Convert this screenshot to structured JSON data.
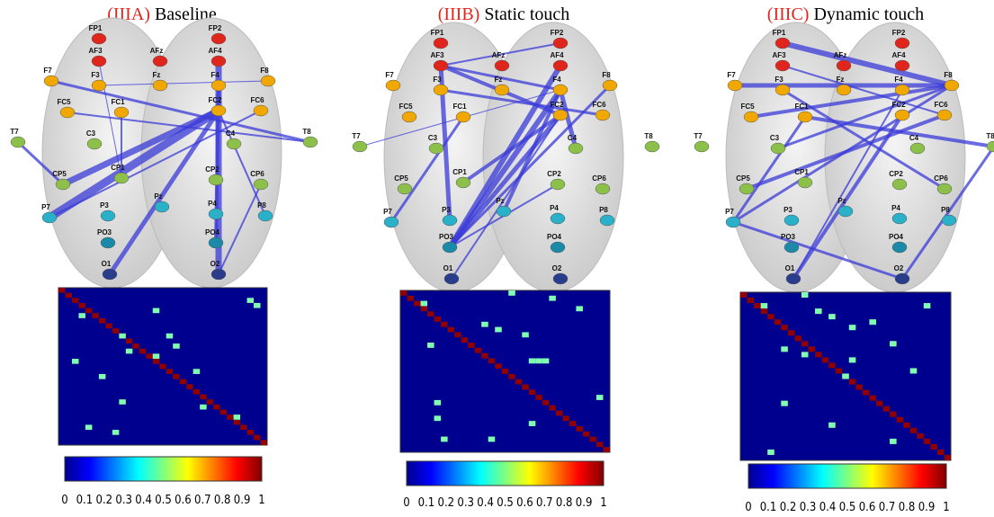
{
  "panels": [
    {
      "label": "(IIIA)",
      "title": "Baseline"
    },
    {
      "label": "(IIIB)",
      "title": "Static touch"
    },
    {
      "label": "(IIIC)",
      "title": "Dynamic touch"
    }
  ],
  "electrodes": [
    "FP1",
    "FP2",
    "AF3",
    "AFz",
    "AF4",
    "F7",
    "F3",
    "Fz",
    "F4",
    "F8",
    "FC5",
    "FC1",
    "FC2",
    "FC6",
    "T7",
    "C3",
    "C4",
    "T8",
    "CP5",
    "CP1",
    "CP2",
    "CP6",
    "P7",
    "P3",
    "Pz",
    "P4",
    "P8",
    "PO3",
    "PO4",
    "O1",
    "O2"
  ],
  "colorbar": {
    "ticks": [
      0,
      0.1,
      0.2,
      0.3,
      0.4,
      0.5,
      0.6,
      0.7,
      0.8,
      0.9,
      1
    ]
  }
}
